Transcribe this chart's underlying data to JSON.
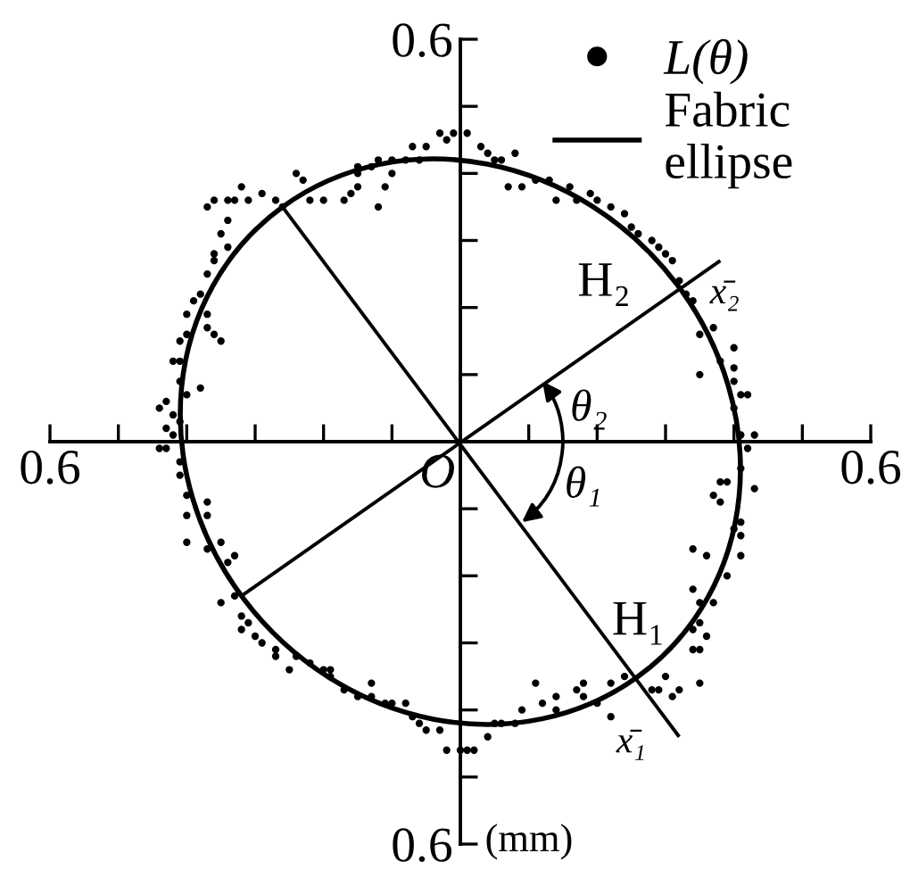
{
  "chart_data": {
    "type": "scatter",
    "xlim": [
      -0.6,
      0.6
    ],
    "ylim": [
      -0.6,
      0.6
    ],
    "xticks": [
      {
        "value": -0.6,
        "label": "0.6"
      },
      {
        "value": -0.5,
        "label": null
      },
      {
        "value": -0.4,
        "label": null
      },
      {
        "value": -0.3,
        "label": null
      },
      {
        "value": -0.2,
        "label": null
      },
      {
        "value": -0.1,
        "label": null
      },
      {
        "value": 0.1,
        "label": null
      },
      {
        "value": 0.2,
        "label": null
      },
      {
        "value": 0.3,
        "label": null
      },
      {
        "value": 0.4,
        "label": null
      },
      {
        "value": 0.5,
        "label": null
      },
      {
        "value": 0.6,
        "label": "0.6"
      }
    ],
    "yticks": [
      {
        "value": -0.6,
        "label": "0.6"
      },
      {
        "value": -0.5,
        "label": null
      },
      {
        "value": -0.4,
        "label": null
      },
      {
        "value": -0.3,
        "label": null
      },
      {
        "value": -0.2,
        "label": null
      },
      {
        "value": -0.1,
        "label": null
      },
      {
        "value": 0.1,
        "label": null
      },
      {
        "value": 0.2,
        "label": null
      },
      {
        "value": 0.3,
        "label": null
      },
      {
        "value": 0.4,
        "label": null
      },
      {
        "value": 0.5,
        "label": null
      },
      {
        "value": 0.6,
        "label": "0.6"
      }
    ],
    "legend": "top right",
    "series": [
      {
        "name": "L(θ)",
        "marker": "circle",
        "color": "#000000",
        "x": [
          0.41,
          0.43,
          0.4,
          0.42,
          0.41,
          0.4,
          0.38,
          0.4,
          0.4,
          0.37,
          0.35,
          0.35,
          0.33,
          0.34,
          0.32,
          0.31,
          0.29,
          0.3,
          0.28,
          0.26,
          0.25,
          0.24,
          0.22,
          0.2,
          0.19,
          0.17,
          0.14,
          0.16,
          0.13,
          0.11,
          0.09,
          0.07,
          0.05,
          0.08,
          0.06,
          0.04,
          0.03,
          0.01,
          -0.01,
          -0.02,
          -0.03,
          -0.05,
          -0.07,
          -0.06,
          -0.08,
          -0.1,
          -0.12,
          -0.13,
          -0.15,
          -0.15,
          -0.1,
          -0.11,
          -0.12,
          -0.15,
          -0.16,
          -0.17,
          -0.2,
          -0.22,
          -0.23,
          -0.24,
          -0.26,
          -0.27,
          -0.29,
          -0.31,
          -0.32,
          -0.33,
          -0.34,
          -0.36,
          -0.37,
          -0.34,
          -0.35,
          -0.34,
          -0.36,
          -0.36,
          -0.37,
          -0.38,
          -0.39,
          -0.4,
          -0.37,
          -0.37,
          -0.35,
          -0.36,
          -0.4,
          -0.41,
          -0.41,
          -0.42,
          -0.41,
          -0.38,
          -0.4,
          -0.43,
          -0.44,
          -0.42,
          -0.41,
          -0.43,
          -0.42,
          -0.44,
          -0.43,
          -0.41,
          -0.41,
          -0.4,
          -0.4,
          -0.4,
          -0.37,
          -0.37,
          -0.37,
          -0.35,
          -0.34,
          -0.33,
          -0.35,
          -0.33,
          -0.32,
          -0.32,
          -0.31,
          -0.3,
          -0.29,
          -0.27,
          -0.27,
          -0.25,
          -0.24,
          -0.22,
          -0.2,
          -0.19,
          -0.19,
          -0.17,
          -0.15,
          -0.13,
          -0.13,
          -0.11,
          -0.1,
          -0.08,
          -0.07,
          -0.06,
          -0.05,
          -0.03,
          -0.02,
          0.0,
          0.01,
          0.02,
          0.04,
          0.06,
          0.05,
          0.08,
          0.09,
          0.11,
          0.12,
          0.14,
          0.14,
          0.17,
          0.18,
          0.18,
          0.2,
          0.22,
          0.22,
          0.24,
          0.28,
          0.29,
          0.3,
          0.31,
          0.32,
          0.35,
          0.34,
          0.35,
          0.36,
          0.35,
          0.34,
          0.34,
          0.35,
          0.37,
          0.36,
          0.34,
          0.39,
          0.41,
          0.41,
          0.4,
          0.41,
          0.37,
          0.38,
          0.39,
          0.41,
          0.42,
          0.43,
          0.38
        ],
        "values": [
          0.01,
          0.01,
          0.05,
          0.07,
          0.07,
          0.09,
          0.12,
          0.14,
          0.11,
          0.17,
          0.16,
          0.1,
          0.22,
          0.21,
          0.24,
          0.27,
          0.29,
          0.28,
          0.3,
          0.31,
          0.32,
          0.34,
          0.35,
          0.36,
          0.37,
          0.36,
          0.36,
          0.38,
          0.39,
          0.39,
          0.38,
          0.38,
          0.42,
          0.43,
          0.42,
          0.43,
          0.44,
          0.46,
          0.46,
          0.45,
          0.46,
          0.44,
          0.44,
          0.42,
          0.42,
          0.42,
          0.42,
          0.41,
          0.4,
          0.41,
          0.4,
          0.38,
          0.35,
          0.38,
          0.37,
          0.36,
          0.36,
          0.36,
          0.39,
          0.4,
          0.35,
          0.36,
          0.37,
          0.36,
          0.38,
          0.36,
          0.36,
          0.36,
          0.35,
          0.33,
          0.31,
          0.29,
          0.28,
          0.27,
          0.25,
          0.22,
          0.21,
          0.19,
          0.19,
          0.17,
          0.15,
          0.16,
          0.16,
          0.15,
          0.12,
          0.12,
          0.09,
          0.08,
          0.07,
          0.06,
          0.05,
          0.04,
          0.03,
          0.02,
          0.01,
          -0.01,
          -0.01,
          -0.03,
          -0.05,
          -0.08,
          -0.11,
          -0.15,
          -0.11,
          -0.09,
          -0.16,
          -0.15,
          -0.18,
          -0.17,
          -0.24,
          -0.23,
          -0.26,
          -0.28,
          -0.27,
          -0.29,
          -0.3,
          -0.31,
          -0.32,
          -0.34,
          -0.32,
          -0.33,
          -0.34,
          -0.35,
          -0.34,
          -0.37,
          -0.38,
          -0.36,
          -0.38,
          -0.39,
          -0.39,
          -0.39,
          -0.41,
          -0.42,
          -0.43,
          -0.43,
          -0.46,
          -0.46,
          -0.46,
          -0.46,
          -0.44,
          -0.42,
          -0.42,
          -0.42,
          -0.4,
          -0.36,
          -0.39,
          -0.4,
          -0.38,
          -0.37,
          -0.36,
          -0.38,
          -0.39,
          -0.36,
          -0.41,
          -0.35,
          -0.37,
          -0.37,
          -0.35,
          -0.38,
          -0.37,
          -0.36,
          -0.31,
          -0.31,
          -0.29,
          -0.27,
          -0.28,
          -0.22,
          -0.24,
          -0.24,
          -0.17,
          -0.16,
          -0.2,
          -0.17,
          -0.14,
          -0.13,
          -0.12,
          -0.08,
          -0.06,
          -0.06,
          -0.04,
          -0.01,
          -0.07,
          -0.09
        ]
      },
      {
        "type": "line",
        "color": "#000000",
        "x": [
          -0.26,
          0.32
        ],
        "values": [
          0.35,
          -0.44
        ]
      },
      {
        "type": "line",
        "color": "#000000",
        "x": [
          -0.32,
          0.38
        ],
        "values": [
          -0.23,
          0.27
        ]
      }
    ],
    "annotations": [
      "Fabric\nellipse",
      "(mm)",
      "O",
      {
        "text": "θ₂",
        "x": 0.12,
        "y": 0.09
      },
      {
        "text": "θ₁",
        "x": 0.09,
        "y": -0.12
      },
      "H₂",
      "x̄₂",
      "H₁",
      "x̄₁"
    ]
  }
}
